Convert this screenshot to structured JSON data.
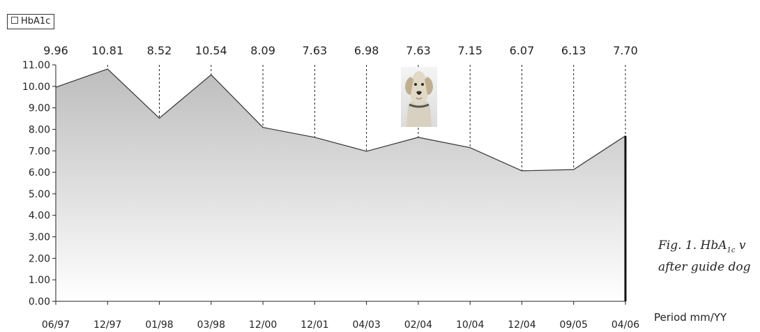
{
  "legend": {
    "label": "HbA1c"
  },
  "caption": {
    "line1_prefix": "Fig. 1. HbA",
    "line1_sub": "1c",
    "line1_suffix": " v",
    "line2": "after guide dog"
  },
  "period_label": "Period mm/YY",
  "dog_icon": "guide-dog-photo",
  "colors": {
    "line": "#333333",
    "fill_top": "#bdbdbd",
    "fill_bottom": "#ffffff",
    "axis": "#222222"
  },
  "chart_data": {
    "type": "area",
    "categories": [
      "06/97",
      "12/97",
      "01/98",
      "03/98",
      "12/00",
      "12/01",
      "04/03",
      "02/04",
      "10/04",
      "12/04",
      "09/05",
      "04/06"
    ],
    "values": [
      9.96,
      10.81,
      8.52,
      10.54,
      8.09,
      7.63,
      6.98,
      7.63,
      7.15,
      6.07,
      6.13,
      7.7
    ],
    "data_labels": [
      "9.96",
      "10.81",
      "8.52",
      "10.54",
      "8.09",
      "7.63",
      "6.98",
      "7.63",
      "7.15",
      "6.07",
      "6.13",
      "7.70"
    ],
    "y_ticks": [
      "0.00",
      "1.00",
      "2.00",
      "3.00",
      "4.00",
      "5.00",
      "6.00",
      "7.00",
      "8.00",
      "9.00",
      "10.00",
      "11.00"
    ],
    "ylim": [
      0,
      11
    ],
    "series": [
      {
        "name": "HbA1c",
        "values": [
          9.96,
          10.81,
          8.52,
          10.54,
          8.09,
          7.63,
          6.98,
          7.63,
          7.15,
          6.07,
          6.13,
          7.7
        ]
      }
    ],
    "xlabel": "Period mm/YY",
    "legend_position": "top-left",
    "grid": false
  }
}
